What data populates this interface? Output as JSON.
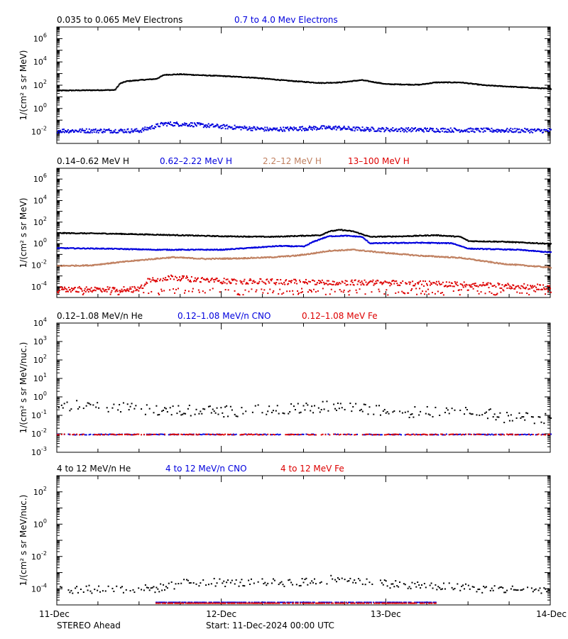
{
  "footer": {
    "spacecraft": "STEREO Ahead",
    "start": "Start: 11-Dec-2024 00:00 UTC"
  },
  "x_axis": {
    "tick_labels": [
      "11-Dec",
      "12-Dec",
      "13-Dec",
      "14-Dec"
    ],
    "range_days": [
      0,
      3
    ]
  },
  "chart_data": [
    {
      "type": "scatter",
      "panel": "electrons",
      "ylabel": "1/(cm² s sr MeV)",
      "y_scale": "log",
      "ylim_exp": [
        -3,
        7
      ],
      "y_tick_exponents": [
        -2,
        0,
        2,
        4,
        6
      ],
      "legend": [
        {
          "text": "0.035 to 0.065 MeV Electrons",
          "color": "#000000"
        },
        {
          "text": "0.7 to 4.0 Mev Electrons",
          "color": "#0000dd"
        }
      ],
      "series": [
        {
          "name": "0.035 to 0.065 MeV Electrons",
          "color": "#000000",
          "scatter": 0.03,
          "points": [
            [
              0,
              1.6
            ],
            [
              0.35,
              1.65
            ],
            [
              0.38,
              2.2
            ],
            [
              0.42,
              2.4
            ],
            [
              0.5,
              2.5
            ],
            [
              0.6,
              2.6
            ],
            [
              0.65,
              2.95
            ],
            [
              0.75,
              3.0
            ],
            [
              0.9,
              2.9
            ],
            [
              1.0,
              2.85
            ],
            [
              1.2,
              2.7
            ],
            [
              1.4,
              2.45
            ],
            [
              1.6,
              2.25
            ],
            [
              1.72,
              2.3
            ],
            [
              1.85,
              2.5
            ],
            [
              2.0,
              2.15
            ],
            [
              2.2,
              2.1
            ],
            [
              2.3,
              2.3
            ],
            [
              2.45,
              2.3
            ],
            [
              2.6,
              2.05
            ],
            [
              2.8,
              1.9
            ],
            [
              3.0,
              1.75
            ]
          ]
        },
        {
          "name": "0.7 to 4.0 Mev Electrons",
          "color": "#0000dd",
          "scatter": 0.18,
          "points": [
            [
              0,
              -1.85
            ],
            [
              0.5,
              -1.85
            ],
            [
              0.6,
              -1.45
            ],
            [
              0.65,
              -1.25
            ],
            [
              0.8,
              -1.3
            ],
            [
              1.0,
              -1.5
            ],
            [
              1.3,
              -1.75
            ],
            [
              1.6,
              -1.6
            ],
            [
              1.7,
              -1.6
            ],
            [
              1.8,
              -1.7
            ],
            [
              2.0,
              -1.75
            ],
            [
              2.5,
              -1.8
            ],
            [
              3.0,
              -1.85
            ]
          ]
        }
      ]
    },
    {
      "type": "scatter",
      "panel": "protons",
      "ylabel": "1/(cm² s sr MeV)",
      "y_scale": "log",
      "ylim_exp": [
        -5,
        7
      ],
      "y_tick_exponents": [
        -4,
        -2,
        0,
        2,
        4,
        6
      ],
      "legend": [
        {
          "text": "0.14–0.62 MeV H",
          "color": "#000000"
        },
        {
          "text": "0.62–2.22 MeV H",
          "color": "#0000dd"
        },
        {
          "text": "2.2–12 MeV H",
          "color": "#c08060"
        },
        {
          "text": "13–100 MeV H",
          "color": "#dd0000"
        }
      ],
      "series": [
        {
          "name": "0.14–0.62 MeV H",
          "color": "#000000",
          "scatter": 0.04,
          "points": [
            [
              0,
              1.05
            ],
            [
              0.3,
              1.0
            ],
            [
              0.6,
              0.9
            ],
            [
              1.0,
              0.75
            ],
            [
              1.3,
              0.7
            ],
            [
              1.5,
              0.8
            ],
            [
              1.6,
              0.85
            ],
            [
              1.65,
              1.2
            ],
            [
              1.72,
              1.35
            ],
            [
              1.8,
              1.2
            ],
            [
              1.9,
              0.7
            ],
            [
              2.1,
              0.75
            ],
            [
              2.3,
              0.85
            ],
            [
              2.45,
              0.7
            ],
            [
              2.5,
              0.3
            ],
            [
              2.7,
              0.25
            ],
            [
              3.0,
              0.05
            ]
          ]
        },
        {
          "name": "0.62–2.22 MeV H",
          "color": "#0000dd",
          "scatter": 0.04,
          "points": [
            [
              0,
              -0.35
            ],
            [
              0.3,
              -0.4
            ],
            [
              0.6,
              -0.5
            ],
            [
              1.0,
              -0.5
            ],
            [
              1.2,
              -0.3
            ],
            [
              1.35,
              -0.15
            ],
            [
              1.5,
              -0.2
            ],
            [
              1.55,
              0.2
            ],
            [
              1.6,
              0.5
            ],
            [
              1.65,
              0.75
            ],
            [
              1.75,
              0.8
            ],
            [
              1.85,
              0.7
            ],
            [
              1.9,
              0.1
            ],
            [
              2.2,
              0.15
            ],
            [
              2.4,
              0.1
            ],
            [
              2.5,
              -0.4
            ],
            [
              2.8,
              -0.5
            ],
            [
              3.0,
              -0.75
            ]
          ]
        },
        {
          "name": "2.2–12 MeV H",
          "color": "#c08060",
          "scatter": 0.05,
          "points": [
            [
              0,
              -2.0
            ],
            [
              0.2,
              -1.95
            ],
            [
              0.35,
              -1.7
            ],
            [
              0.55,
              -1.4
            ],
            [
              0.7,
              -1.2
            ],
            [
              0.9,
              -1.35
            ],
            [
              1.1,
              -1.3
            ],
            [
              1.3,
              -1.2
            ],
            [
              1.45,
              -1.05
            ],
            [
              1.55,
              -0.85
            ],
            [
              1.65,
              -0.6
            ],
            [
              1.8,
              -0.5
            ],
            [
              2.0,
              -0.8
            ],
            [
              2.2,
              -1.05
            ],
            [
              2.45,
              -1.25
            ],
            [
              2.7,
              -1.8
            ],
            [
              3.0,
              -2.15
            ]
          ]
        },
        {
          "name": "13–100 MeV H",
          "color": "#dd0000",
          "scatter": 0.25,
          "fill_below": -4.1,
          "points": [
            [
              0,
              -4.2
            ],
            [
              0.5,
              -4.15
            ],
            [
              0.55,
              -3.3
            ],
            [
              0.7,
              -3.05
            ],
            [
              0.85,
              -3.3
            ],
            [
              1.0,
              -3.4
            ],
            [
              1.2,
              -3.45
            ],
            [
              1.5,
              -3.5
            ],
            [
              1.8,
              -3.55
            ],
            [
              2.1,
              -3.6
            ],
            [
              2.4,
              -3.7
            ],
            [
              2.7,
              -3.85
            ],
            [
              3.0,
              -4.0
            ]
          ]
        }
      ]
    },
    {
      "type": "scatter",
      "panel": "heavy-low",
      "ylabel": "1/(cm² s sr MeV/nuc.)",
      "y_scale": "log",
      "ylim_exp": [
        -3,
        4
      ],
      "y_tick_exponents": [
        -3,
        -2,
        -1,
        0,
        1,
        2,
        3,
        4
      ],
      "legend": [
        {
          "text": "0.12–1.08 MeV/n He",
          "color": "#000000"
        },
        {
          "text": "0.12–1.08 MeV/n CNO",
          "color": "#0000dd"
        },
        {
          "text": "0.12–1.08 MeV Fe",
          "color": "#dd0000"
        }
      ],
      "series": [
        {
          "name": "0.12–1.08 MeV/n He",
          "color": "#000000",
          "scatter": 0.3,
          "sparse": true,
          "points": [
            [
              0,
              -0.4
            ],
            [
              0.3,
              -0.55
            ],
            [
              0.6,
              -0.65
            ],
            [
              1.0,
              -0.75
            ],
            [
              1.4,
              -0.65
            ],
            [
              1.7,
              -0.45
            ],
            [
              1.9,
              -0.7
            ],
            [
              2.2,
              -0.8
            ],
            [
              2.4,
              -0.7
            ],
            [
              2.55,
              -0.65
            ],
            [
              2.7,
              -1.1
            ],
            [
              3.0,
              -1.1
            ]
          ]
        },
        {
          "name": "0.12–1.08 MeV/n CNO",
          "color": "#0000dd",
          "scatter": 0.02,
          "sparse": true,
          "points": [
            [
              0,
              -2.0
            ],
            [
              3.0,
              -2.0
            ]
          ]
        },
        {
          "name": "0.12–1.08 MeV Fe",
          "color": "#dd0000",
          "scatter": 0.02,
          "sparse": true,
          "points": [
            [
              0,
              -2.0
            ],
            [
              3.0,
              -2.0
            ]
          ]
        }
      ]
    },
    {
      "type": "scatter",
      "panel": "heavy-high",
      "ylabel": "1/(cm² s sr MeV/nuc.)",
      "y_scale": "log",
      "ylim_exp": [
        -5,
        3
      ],
      "y_tick_exponents": [
        -4,
        -2,
        0,
        2
      ],
      "legend": [
        {
          "text": "4 to 12 MeV/n He",
          "color": "#000000"
        },
        {
          "text": "4 to 12 MeV/n CNO",
          "color": "#0000dd"
        },
        {
          "text": "4 to 12 MeV Fe",
          "color": "#dd0000"
        }
      ],
      "series": [
        {
          "name": "4 to 12 MeV/n He",
          "color": "#000000",
          "scatter": 0.25,
          "sparse": true,
          "points": [
            [
              0,
              -4.0
            ],
            [
              0.6,
              -3.95
            ],
            [
              0.8,
              -3.55
            ],
            [
              1.2,
              -3.6
            ],
            [
              1.5,
              -3.55
            ],
            [
              1.75,
              -3.3
            ],
            [
              1.9,
              -3.6
            ],
            [
              2.2,
              -3.75
            ],
            [
              2.5,
              -3.9
            ],
            [
              2.6,
              -4.0
            ],
            [
              3.0,
              -4.0
            ]
          ]
        },
        {
          "name": "4 to 12 MeV/n CNO",
          "color": "#0000dd",
          "scatter": 0.0,
          "sparse": true,
          "points": [
            [
              0.6,
              -4.8
            ],
            [
              2.3,
              -4.8
            ]
          ]
        },
        {
          "name": "4 to 12 MeV Fe",
          "color": "#dd0000",
          "scatter": 0.0,
          "sparse": true,
          "points": [
            [
              0.6,
              -4.85
            ],
            [
              2.3,
              -4.85
            ]
          ]
        }
      ]
    }
  ]
}
